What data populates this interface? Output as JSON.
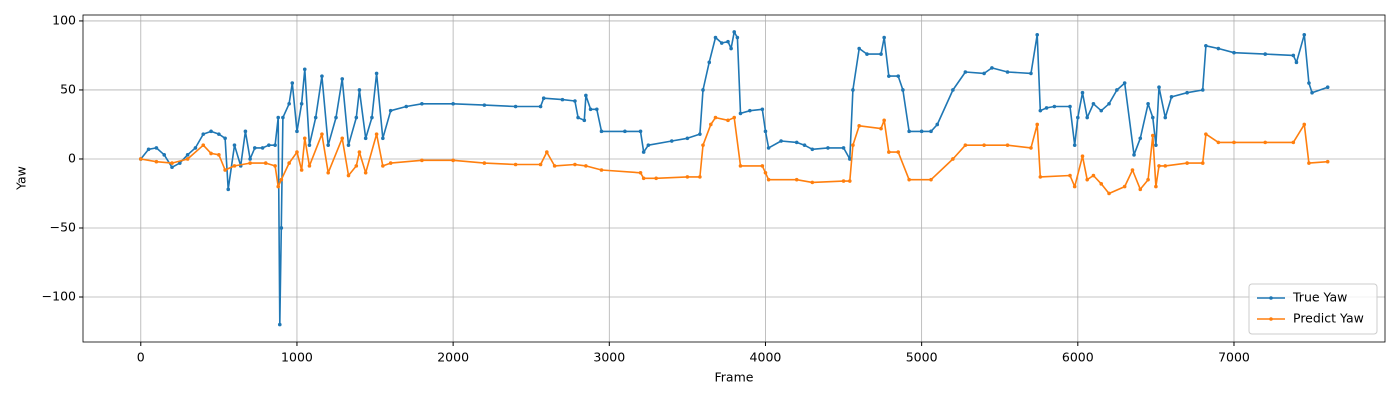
{
  "chart_data": {
    "type": "line",
    "xlabel": "Frame",
    "ylabel": "Yaw",
    "xlim": [
      -370,
      7967
    ],
    "ylim": [
      -132.6,
      104.3
    ],
    "xticks": [
      0,
      1000,
      2000,
      3000,
      4000,
      5000,
      6000,
      7000
    ],
    "yticks": [
      {
        "value": -100,
        "label": "−100"
      },
      {
        "value": -50,
        "label": "−50"
      },
      0,
      50,
      100
    ],
    "grid": true,
    "legend": "lower right",
    "series": [
      {
        "name": "True Yaw",
        "color": "#1f77b4",
        "x": [
          0,
          50,
          100,
          150,
          200,
          250,
          300,
          350,
          400,
          450,
          500,
          540,
          560,
          600,
          640,
          670,
          700,
          730,
          780,
          820,
          860,
          880,
          890,
          900,
          910,
          950,
          970,
          1000,
          1030,
          1050,
          1080,
          1120,
          1160,
          1200,
          1250,
          1290,
          1330,
          1380,
          1400,
          1440,
          1480,
          1510,
          1550,
          1600,
          1700,
          1800,
          2000,
          2200,
          2400,
          2560,
          2580,
          2700,
          2780,
          2800,
          2840,
          2850,
          2880,
          2920,
          2950,
          3100,
          3200,
          3220,
          3250,
          3400,
          3500,
          3580,
          3600,
          3640,
          3680,
          3720,
          3760,
          3780,
          3800,
          3820,
          3840,
          3900,
          3980,
          4000,
          4020,
          4100,
          4200,
          4250,
          4300,
          4400,
          4500,
          4540,
          4560,
          4600,
          4650,
          4740,
          4760,
          4790,
          4850,
          4880,
          4920,
          5000,
          5060,
          5100,
          5200,
          5280,
          5400,
          5450,
          5550,
          5700,
          5740,
          5760,
          5800,
          5850,
          5950,
          5980,
          6000,
          6030,
          6060,
          6100,
          6150,
          6200,
          6250,
          6300,
          6360,
          6400,
          6450,
          6480,
          6500,
          6520,
          6560,
          6600,
          6700,
          6800,
          6820,
          6900,
          7000,
          7200,
          7380,
          7400,
          7450,
          7480,
          7500,
          7600
        ],
        "values": [
          0,
          7,
          8,
          3,
          -6,
          -3,
          3,
          8,
          18,
          20,
          18,
          15,
          -22,
          10,
          -5,
          20,
          0,
          8,
          8,
          10,
          10,
          30,
          -120,
          -50,
          30,
          40,
          55,
          20,
          40,
          65,
          10,
          30,
          60,
          10,
          30,
          58,
          10,
          30,
          50,
          15,
          30,
          62,
          15,
          35,
          38,
          40,
          40,
          39,
          38,
          38,
          44,
          43,
          42,
          30,
          28,
          46,
          36,
          36,
          20,
          20,
          20,
          5,
          10,
          13,
          15,
          18,
          50,
          70,
          88,
          84,
          85,
          80,
          92,
          88,
          33,
          35,
          36,
          20,
          8,
          13,
          12,
          10,
          7,
          8,
          8,
          0,
          50,
          80,
          76,
          76,
          88,
          60,
          60,
          50,
          20,
          20,
          20,
          25,
          50,
          63,
          62,
          66,
          63,
          62,
          90,
          35,
          37,
          38,
          38,
          10,
          30,
          48,
          30,
          40,
          35,
          40,
          50,
          55,
          3,
          15,
          40,
          30,
          10,
          52,
          30,
          45,
          48,
          50,
          82,
          80,
          77,
          76,
          75,
          70,
          90,
          55,
          48,
          52
        ]
      },
      {
        "name": "Predict Yaw",
        "color": "#ff7f0e",
        "x": [
          0,
          100,
          200,
          300,
          400,
          450,
          500,
          540,
          600,
          700,
          800,
          860,
          880,
          900,
          950,
          1000,
          1030,
          1050,
          1080,
          1160,
          1200,
          1290,
          1330,
          1380,
          1400,
          1440,
          1510,
          1550,
          1600,
          1800,
          2000,
          2200,
          2400,
          2560,
          2600,
          2650,
          2780,
          2850,
          2950,
          3200,
          3220,
          3300,
          3500,
          3580,
          3600,
          3650,
          3680,
          3760,
          3800,
          3840,
          3980,
          4000,
          4020,
          4200,
          4300,
          4500,
          4540,
          4560,
          4600,
          4740,
          4760,
          4790,
          4850,
          4920,
          5060,
          5200,
          5280,
          5400,
          5550,
          5700,
          5740,
          5760,
          5950,
          5980,
          6030,
          6060,
          6100,
          6150,
          6200,
          6300,
          6350,
          6400,
          6450,
          6480,
          6500,
          6520,
          6560,
          6700,
          6800,
          6820,
          6900,
          7000,
          7200,
          7380,
          7450,
          7480,
          7600
        ],
        "values": [
          0,
          -2,
          -3,
          0,
          10,
          4,
          3,
          -8,
          -5,
          -3,
          -3,
          -5,
          -20,
          -15,
          -3,
          5,
          -8,
          15,
          -5,
          18,
          -10,
          15,
          -12,
          -5,
          5,
          -10,
          18,
          -5,
          -3,
          -1,
          -1,
          -3,
          -4,
          -4,
          5,
          -5,
          -4,
          -5,
          -8,
          -10,
          -14,
          -14,
          -13,
          -13,
          10,
          25,
          30,
          28,
          30,
          -5,
          -5,
          -10,
          -15,
          -15,
          -17,
          -16,
          -16,
          10,
          24,
          22,
          28,
          5,
          5,
          -15,
          -15,
          0,
          10,
          10,
          10,
          8,
          25,
          -13,
          -12,
          -20,
          2,
          -15,
          -12,
          -18,
          -25,
          -20,
          -8,
          -22,
          -15,
          17,
          -20,
          -5,
          -5,
          -3,
          -3,
          18,
          12,
          12,
          12,
          12,
          25,
          -3,
          -2
        ]
      }
    ]
  }
}
